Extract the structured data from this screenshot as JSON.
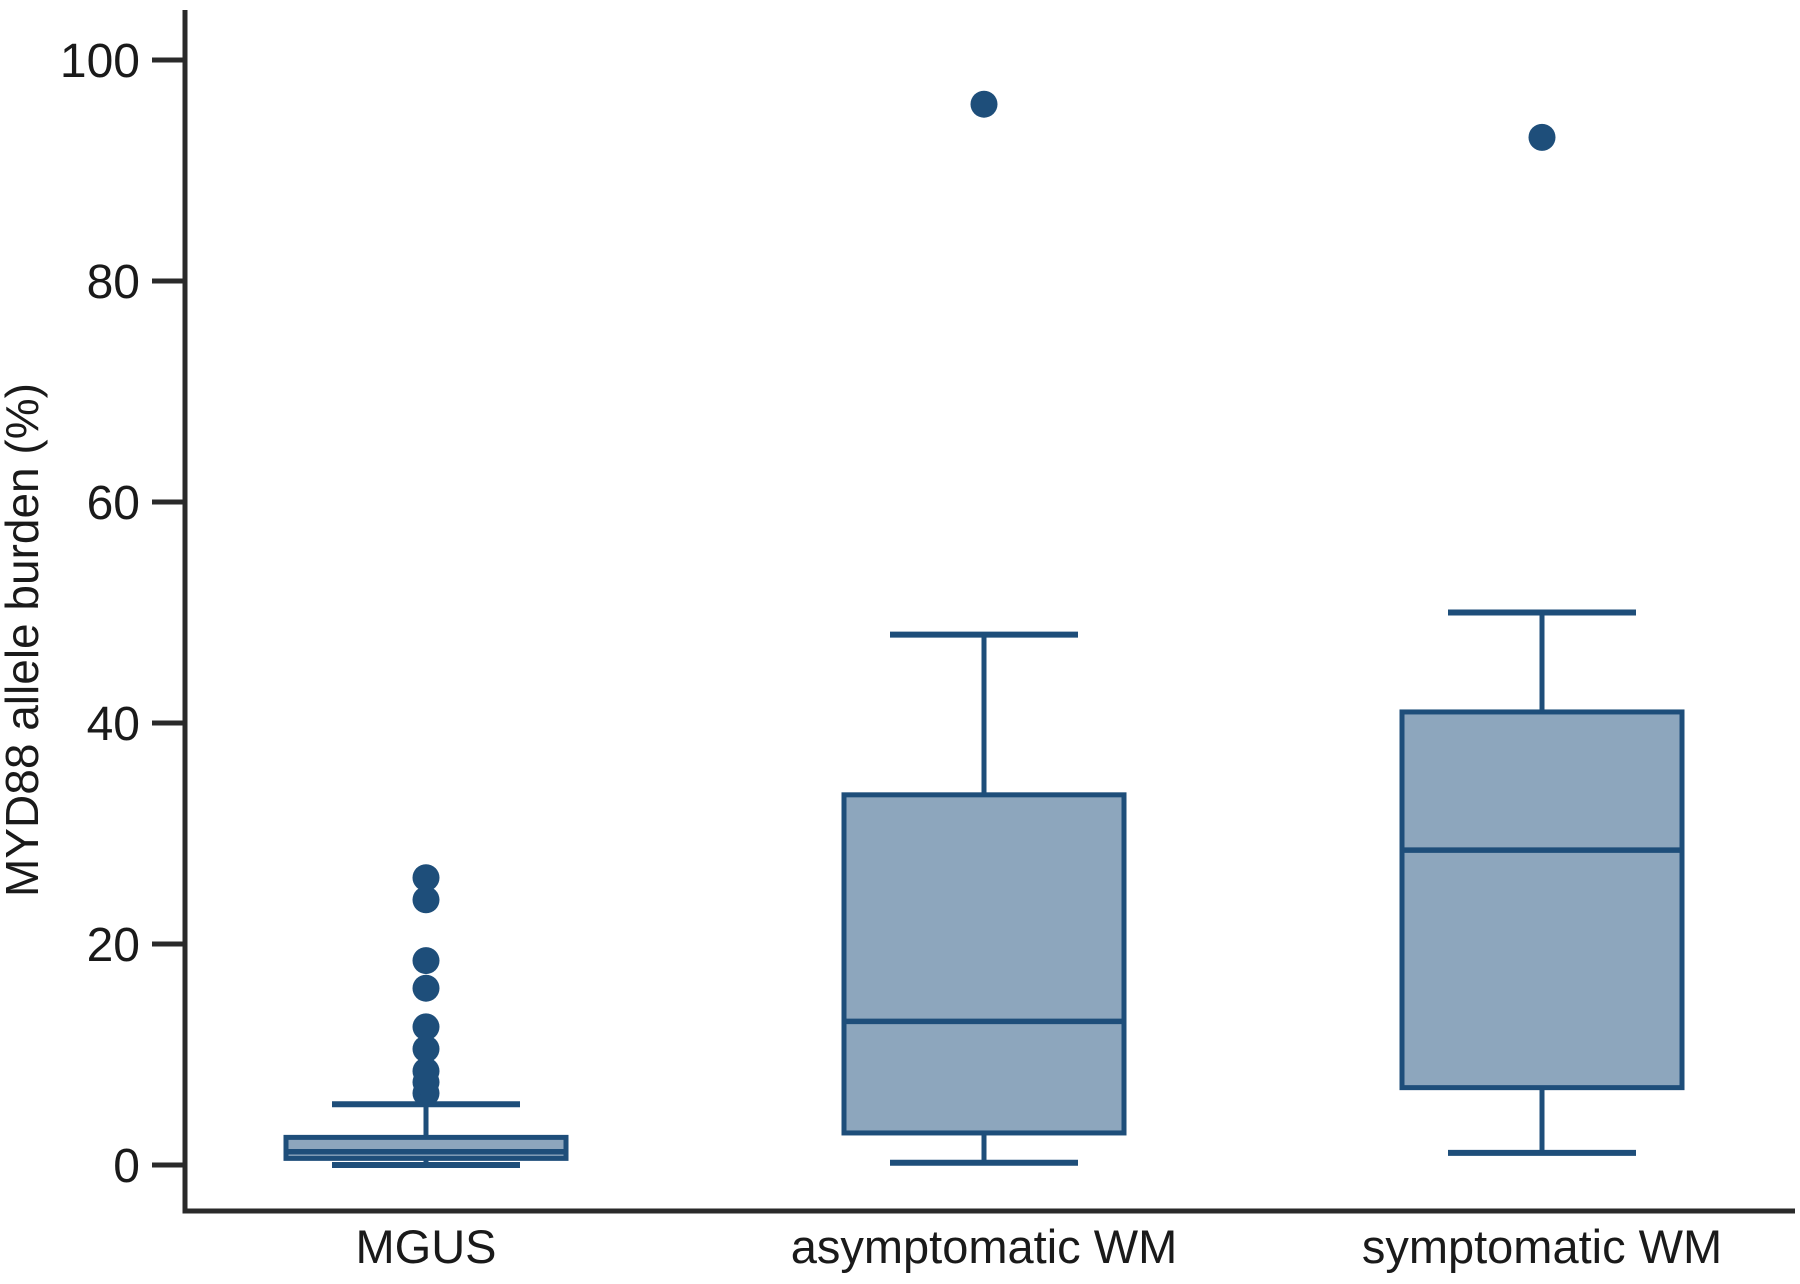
{
  "chart_data": {
    "type": "box",
    "title": "",
    "xlabel": "",
    "ylabel": "MYD88 allele burden (%)",
    "ylim": [
      0,
      100
    ],
    "yticks": [
      0,
      20,
      40,
      60,
      80,
      100
    ],
    "grid": false,
    "legend": "none",
    "categories": [
      "MGUS",
      "asymptomatic WM",
      "symptomatic WM"
    ],
    "series": [
      {
        "name": "MGUS",
        "whisker_low": 0,
        "q1": 0.6,
        "median": 1.2,
        "q3": 2.5,
        "whisker_high": 5.5,
        "outliers": [
          6.5,
          7.5,
          8.5,
          10.5,
          12.5,
          16,
          18.5,
          24,
          26
        ]
      },
      {
        "name": "asymptomatic WM",
        "whisker_low": 0.2,
        "q1": 2.9,
        "median": 13,
        "q3": 33.5,
        "whisker_high": 48,
        "outliers": [
          96
        ]
      },
      {
        "name": "symptomatic WM",
        "whisker_low": 1.1,
        "q1": 7,
        "median": 28.5,
        "q3": 41,
        "whisker_high": 50,
        "outliers": [
          93
        ]
      }
    ],
    "colors": {
      "box_fill": "#8da6bd",
      "box_stroke": "#1e4e7a",
      "outlier": "#1e4e7a",
      "axis": "#2a2a2a",
      "text": "#1a1a1a"
    }
  }
}
